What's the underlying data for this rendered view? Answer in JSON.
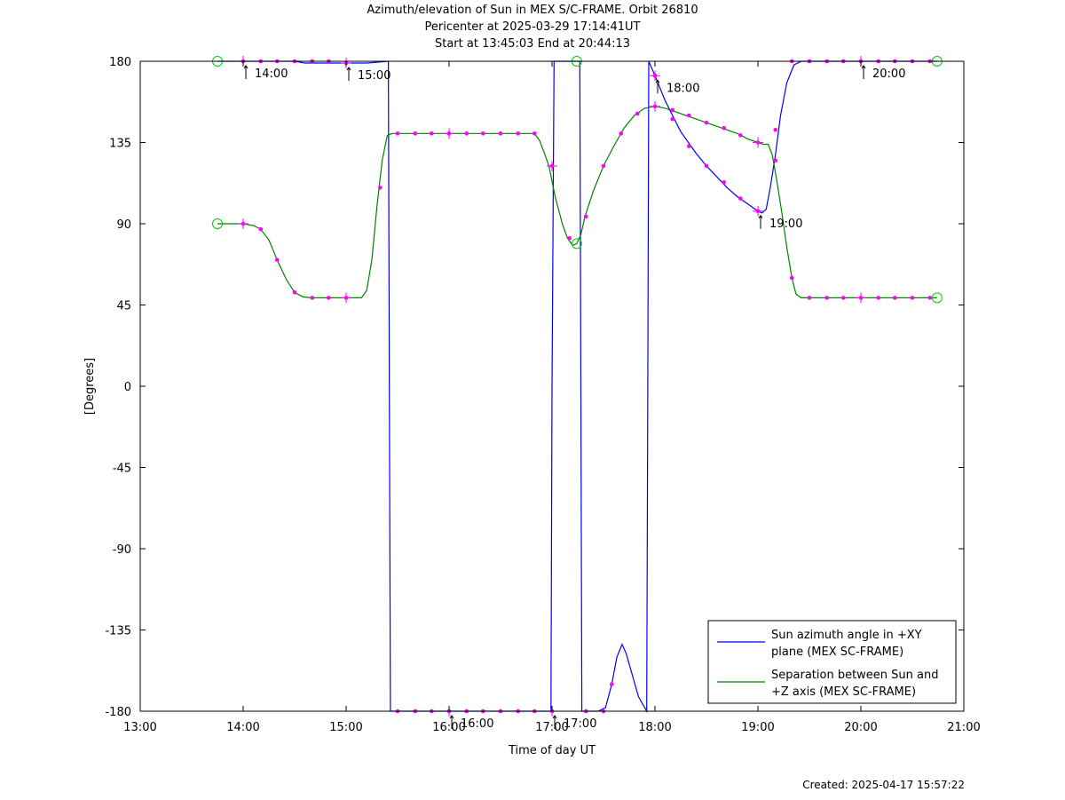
{
  "title_lines": [
    "Azimuth/elevation of Sun in MEX S/C-FRAME.  Orbit 26810",
    "Pericenter at 2025-03-29 17:14:41UT",
    "Start at 13:45:03 End at 20:44:13"
  ],
  "created": "Created: 2025-04-17 15:57:22",
  "chart_data": {
    "type": "line",
    "xlabel": "Time of day UT",
    "ylabel": "[Degrees]",
    "xlim": [
      13.0,
      21.0
    ],
    "ylim": [
      -180,
      180
    ],
    "xticks": [
      13,
      14,
      15,
      16,
      17,
      18,
      19,
      20,
      21
    ],
    "xtick_labels": [
      "13:00",
      "14:00",
      "15:00",
      "16:00",
      "17:00",
      "18:00",
      "19:00",
      "20:00",
      "21:00"
    ],
    "yticks": [
      180,
      135,
      90,
      45,
      0,
      -45,
      -90,
      -135,
      -180
    ],
    "ytick_labels": [
      "180",
      "135",
      "90",
      "45",
      "0",
      "-45",
      "-90",
      "-135",
      "-180"
    ],
    "grid": false,
    "legend_position": "bottom-right",
    "series": [
      {
        "name": "Sun azimuth angle in +XY plane (MEX SC-FRAME)",
        "legend_lines": [
          "Sun azimuth angle in +XY",
          "plane (MEX SC-FRAME)"
        ],
        "color": "#0000ff",
        "points": [
          [
            13.75,
            180
          ],
          [
            14.0,
            180
          ],
          [
            14.5,
            180
          ],
          [
            14.6,
            179
          ],
          [
            15.0,
            179
          ],
          [
            15.2,
            179
          ],
          [
            15.41,
            180
          ],
          [
            15.42,
            0
          ],
          [
            15.43,
            -180
          ],
          [
            16.0,
            -180
          ],
          [
            16.5,
            -180
          ],
          [
            16.99,
            -180
          ],
          [
            17.0,
            0
          ],
          [
            17.02,
            180
          ],
          [
            17.1,
            180
          ],
          [
            17.2,
            180
          ],
          [
            17.27,
            180
          ],
          [
            17.28,
            0
          ],
          [
            17.29,
            -180
          ],
          [
            17.45,
            -180
          ],
          [
            17.52,
            -178
          ],
          [
            17.58,
            -165
          ],
          [
            17.63,
            -150
          ],
          [
            17.68,
            -143
          ],
          [
            17.72,
            -148
          ],
          [
            17.78,
            -160
          ],
          [
            17.84,
            -172
          ],
          [
            17.92,
            -180
          ],
          [
            17.93,
            0
          ],
          [
            17.94,
            180
          ],
          [
            18.0,
            172
          ],
          [
            18.1,
            158
          ],
          [
            18.25,
            141
          ],
          [
            18.4,
            129
          ],
          [
            18.5,
            122
          ],
          [
            18.6,
            116
          ],
          [
            18.7,
            110
          ],
          [
            18.8,
            105
          ],
          [
            18.9,
            101
          ],
          [
            19.0,
            97
          ],
          [
            19.04,
            96
          ],
          [
            19.08,
            98
          ],
          [
            19.12,
            110
          ],
          [
            19.17,
            128
          ],
          [
            19.22,
            150
          ],
          [
            19.28,
            168
          ],
          [
            19.35,
            178
          ],
          [
            19.42,
            180
          ],
          [
            19.8,
            180
          ],
          [
            20.0,
            180
          ],
          [
            20.5,
            180
          ],
          [
            20.74,
            180
          ]
        ]
      },
      {
        "name": "Separation between Sun and +Z axis (MEX SC-FRAME)",
        "legend_lines": [
          "Separation between Sun and",
          "+Z axis (MEX SC-FRAME)"
        ],
        "color": "#008000",
        "points": [
          [
            13.75,
            90
          ],
          [
            14.0,
            90
          ],
          [
            14.1,
            89
          ],
          [
            14.17,
            87
          ],
          [
            14.25,
            81
          ],
          [
            14.33,
            70
          ],
          [
            14.42,
            59
          ],
          [
            14.5,
            52
          ],
          [
            14.58,
            49.5
          ],
          [
            14.67,
            49
          ],
          [
            14.8,
            49
          ],
          [
            15.0,
            49
          ],
          [
            15.15,
            49
          ],
          [
            15.2,
            53
          ],
          [
            15.25,
            70
          ],
          [
            15.3,
            100
          ],
          [
            15.35,
            125
          ],
          [
            15.4,
            139
          ],
          [
            15.45,
            140
          ],
          [
            15.6,
            140
          ],
          [
            16.0,
            140
          ],
          [
            16.5,
            140
          ],
          [
            16.83,
            140
          ],
          [
            16.88,
            136
          ],
          [
            16.92,
            130
          ],
          [
            16.97,
            122
          ],
          [
            17.03,
            105
          ],
          [
            17.1,
            90
          ],
          [
            17.15,
            82
          ],
          [
            17.2,
            78
          ],
          [
            17.24,
            79
          ],
          [
            17.28,
            84
          ],
          [
            17.32,
            94
          ],
          [
            17.4,
            108
          ],
          [
            17.5,
            122
          ],
          [
            17.6,
            133
          ],
          [
            17.7,
            143
          ],
          [
            17.8,
            150
          ],
          [
            17.9,
            154
          ],
          [
            18.0,
            155
          ],
          [
            18.1,
            154
          ],
          [
            18.2,
            152
          ],
          [
            18.3,
            150
          ],
          [
            18.4,
            148
          ],
          [
            18.5,
            146
          ],
          [
            18.6,
            144
          ],
          [
            18.7,
            142
          ],
          [
            18.8,
            140
          ],
          [
            18.9,
            137
          ],
          [
            19.0,
            135
          ],
          [
            19.05,
            134
          ],
          [
            19.1,
            134
          ],
          [
            19.14,
            128
          ],
          [
            19.18,
            115
          ],
          [
            19.23,
            97
          ],
          [
            19.28,
            77
          ],
          [
            19.33,
            60
          ],
          [
            19.37,
            51
          ],
          [
            19.42,
            49
          ],
          [
            19.6,
            49
          ],
          [
            20.0,
            49
          ],
          [
            20.5,
            49
          ],
          [
            20.74,
            49
          ]
        ]
      }
    ],
    "time_marks": [
      {
        "label": "14:00",
        "x": 14.0,
        "y": 180
      },
      {
        "label": "15:00",
        "x": 15.0,
        "y": 179
      },
      {
        "label": "16:00",
        "x": 16.0,
        "y": -180
      },
      {
        "label": "17:00",
        "x": 17.0,
        "y": -180
      },
      {
        "label": "18:00",
        "x": 18.0,
        "y": 172
      },
      {
        "label": "19:00",
        "x": 19.0,
        "y": 97
      },
      {
        "label": "20:00",
        "x": 20.0,
        "y": 180
      }
    ],
    "marker_colors": {
      "dot": "#ff00ff",
      "circle": "#00cc00",
      "cross": "#ff00ff"
    },
    "start_end_circles": [
      [
        13.75,
        180
      ],
      [
        13.75,
        90
      ],
      [
        20.74,
        180
      ],
      [
        20.74,
        49
      ],
      [
        17.24,
        180
      ],
      [
        17.24,
        79
      ]
    ],
    "crosses": [
      [
        14.0,
        180
      ],
      [
        14.0,
        90
      ],
      [
        15.0,
        179
      ],
      [
        15.0,
        49
      ],
      [
        16.0,
        -180
      ],
      [
        16.0,
        140
      ],
      [
        17.0,
        -180
      ],
      [
        17.0,
        122
      ],
      [
        18.0,
        172
      ],
      [
        18.0,
        155
      ],
      [
        19.0,
        97
      ],
      [
        19.0,
        135
      ],
      [
        20.0,
        180
      ],
      [
        20.0,
        49
      ]
    ],
    "dots": [
      [
        14.17,
        180
      ],
      [
        14.33,
        180
      ],
      [
        14.5,
        180
      ],
      [
        14.67,
        180
      ],
      [
        14.83,
        180
      ],
      [
        14.17,
        87
      ],
      [
        14.33,
        70
      ],
      [
        14.5,
        52
      ],
      [
        14.67,
        49
      ],
      [
        14.83,
        49
      ],
      [
        15.33,
        110
      ],
      [
        15.5,
        -180
      ],
      [
        15.67,
        -180
      ],
      [
        15.83,
        -180
      ],
      [
        16.17,
        -180
      ],
      [
        16.33,
        -180
      ],
      [
        16.5,
        -180
      ],
      [
        16.67,
        -180
      ],
      [
        16.83,
        -180
      ],
      [
        15.5,
        140
      ],
      [
        15.67,
        140
      ],
      [
        15.83,
        140
      ],
      [
        16.17,
        140
      ],
      [
        16.33,
        140
      ],
      [
        16.5,
        140
      ],
      [
        16.67,
        140
      ],
      [
        16.83,
        140
      ],
      [
        17.17,
        82
      ],
      [
        17.33,
        94
      ],
      [
        17.5,
        122
      ],
      [
        17.67,
        140
      ],
      [
        17.83,
        151
      ],
      [
        17.33,
        -180
      ],
      [
        17.5,
        -180
      ],
      [
        17.58,
        -165
      ],
      [
        18.17,
        153
      ],
      [
        18.33,
        150
      ],
      [
        18.5,
        146
      ],
      [
        18.67,
        143
      ],
      [
        18.83,
        139
      ],
      [
        18.17,
        148
      ],
      [
        18.33,
        133
      ],
      [
        18.5,
        122
      ],
      [
        18.67,
        113
      ],
      [
        18.83,
        104
      ],
      [
        19.17,
        125
      ],
      [
        19.17,
        142
      ],
      [
        19.33,
        60
      ],
      [
        19.33,
        180
      ],
      [
        19.5,
        49
      ],
      [
        19.67,
        49
      ],
      [
        19.83,
        49
      ],
      [
        20.17,
        49
      ],
      [
        20.33,
        49
      ],
      [
        20.5,
        49
      ],
      [
        20.67,
        49
      ],
      [
        19.5,
        180
      ],
      [
        19.67,
        180
      ],
      [
        19.83,
        180
      ],
      [
        20.17,
        180
      ],
      [
        20.33,
        180
      ],
      [
        20.5,
        180
      ],
      [
        20.67,
        180
      ]
    ]
  }
}
